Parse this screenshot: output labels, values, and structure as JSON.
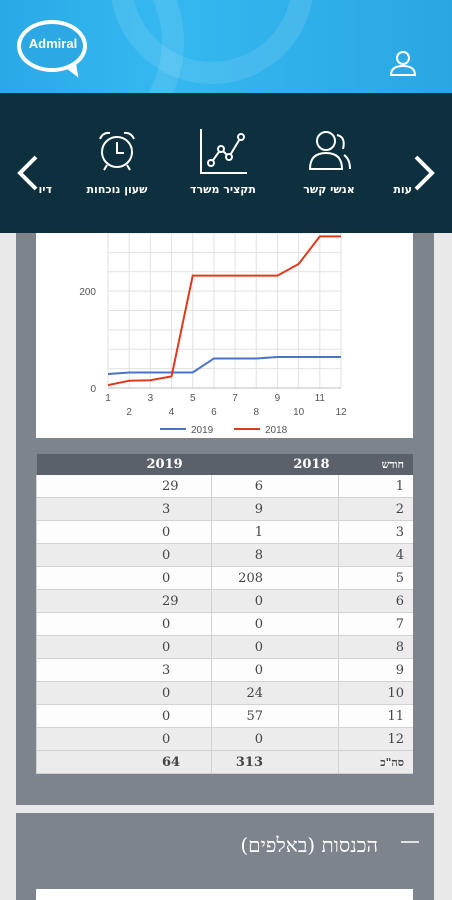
{
  "app": {
    "logo_text": "Admiral"
  },
  "header": {
    "user_icon": "user-icon"
  },
  "nav": {
    "items": [
      {
        "label": "עות",
        "icon": "partial-icon"
      },
      {
        "label": "אנשי קשר",
        "icon": "contacts-icon"
      },
      {
        "label": "תקציר משרד",
        "icon": "line-chart-icon"
      },
      {
        "label": "שעון נוכחות",
        "icon": "alarm-clock-icon"
      },
      {
        "label": "דיו",
        "icon": "partial-icon"
      }
    ]
  },
  "chart_data": {
    "type": "line",
    "x": [
      1,
      2,
      3,
      4,
      5,
      6,
      7,
      8,
      9,
      10,
      11,
      12
    ],
    "x_ticks_top": [
      "1",
      "3",
      "5",
      "7",
      "9",
      "11"
    ],
    "x_ticks_bottom": [
      "2",
      "4",
      "6",
      "8",
      "10",
      "12"
    ],
    "y_ticks": [
      "0",
      "200"
    ],
    "ylim": [
      0,
      320
    ],
    "grid": true,
    "legend_placement": "bottom",
    "series": [
      {
        "name": "2019",
        "color": "#4a72c8",
        "values": [
          29,
          32,
          32,
          32,
          32,
          61,
          61,
          61,
          64,
          64,
          64,
          64
        ]
      },
      {
        "name": "2018",
        "color": "#e03a1e",
        "values": [
          6,
          15,
          16,
          24,
          232,
          232,
          232,
          232,
          232,
          256,
          313,
          313
        ]
      }
    ]
  },
  "table": {
    "headers": {
      "month": "חודש",
      "y2018": "2018",
      "y2019": "2019"
    },
    "rows": [
      {
        "month": "1",
        "y2018": "6",
        "y2019": "29"
      },
      {
        "month": "2",
        "y2018": "9",
        "y2019": "3"
      },
      {
        "month": "3",
        "y2018": "1",
        "y2019": "0"
      },
      {
        "month": "4",
        "y2018": "8",
        "y2019": "0"
      },
      {
        "month": "5",
        "y2018": "208",
        "y2019": "0"
      },
      {
        "month": "6",
        "y2018": "0",
        "y2019": "29"
      },
      {
        "month": "7",
        "y2018": "0",
        "y2019": "0"
      },
      {
        "month": "8",
        "y2018": "0",
        "y2019": "0"
      },
      {
        "month": "9",
        "y2018": "0",
        "y2019": "3"
      },
      {
        "month": "10",
        "y2018": "24",
        "y2019": "0"
      },
      {
        "month": "11",
        "y2018": "57",
        "y2019": "0"
      },
      {
        "month": "12",
        "y2018": "0",
        "y2019": "0"
      }
    ],
    "total": {
      "label": "סה\"כ",
      "y2018": "313",
      "y2019": "64"
    }
  },
  "income": {
    "title": "הכנסות (באלפים)",
    "toggle": "minus-icon"
  }
}
